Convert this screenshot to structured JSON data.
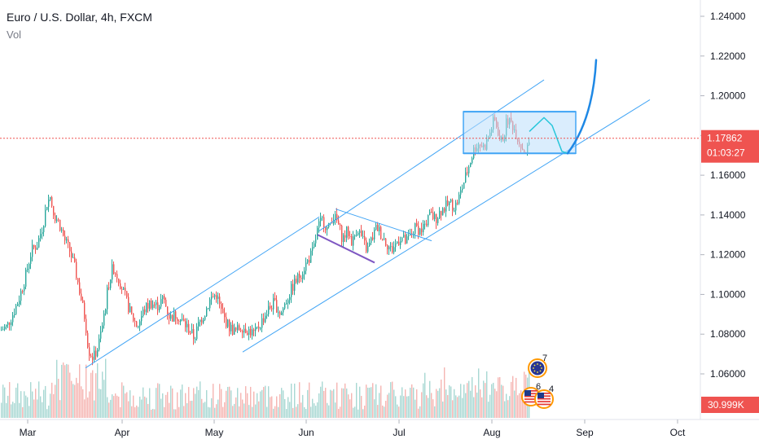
{
  "header": {
    "title": "Euro / U.S. Dollar, 4h, FXCM",
    "volume_label": "Vol"
  },
  "colors": {
    "up": "#26a69a",
    "down": "#ef5350",
    "vol_up": "#a8d8d3",
    "vol_down": "#f5b5b2",
    "channel": "#42a5f5",
    "wedge_lower": "#7e57c2",
    "box_fill": "#bbdefb",
    "projection_cyan": "#26c6da",
    "projection_blue": "#1e88e5",
    "last_price": "#ef5350",
    "axis": "#787b86"
  },
  "chart_data": {
    "type": "candlestick",
    "symbol": "Euro / U.S. Dollar",
    "timeframe": "4h",
    "source": "FXCM",
    "x_ticks": [
      "Mar",
      "Apr",
      "May",
      "Jun",
      "Jul",
      "Aug",
      "Sep",
      "Oct"
    ],
    "y_ticks": [
      "1.24000",
      "1.22000",
      "1.20000",
      "1.18000",
      "1.16000",
      "1.14000",
      "1.12000",
      "1.10000",
      "1.08000",
      "1.06000"
    ],
    "ylim": [
      1.045,
      1.255
    ],
    "last_price": "1.17862",
    "countdown": "01:03:27",
    "volume_last": "30.999K",
    "price_path": [
      [
        0,
        1.082
      ],
      [
        8,
        1.084
      ],
      [
        15,
        1.09
      ],
      [
        22,
        1.097
      ],
      [
        30,
        1.108
      ],
      [
        38,
        1.122
      ],
      [
        45,
        1.125
      ],
      [
        52,
        1.135
      ],
      [
        57,
        1.146
      ],
      [
        61,
        1.149
      ],
      [
        66,
        1.14
      ],
      [
        72,
        1.136
      ],
      [
        78,
        1.128
      ],
      [
        85,
        1.122
      ],
      [
        92,
        1.112
      ],
      [
        98,
        1.1
      ],
      [
        104,
        1.087
      ],
      [
        108,
        1.072
      ],
      [
        114,
        1.068
      ],
      [
        120,
        1.074
      ],
      [
        126,
        1.086
      ],
      [
        132,
        1.104
      ],
      [
        138,
        1.114
      ],
      [
        145,
        1.108
      ],
      [
        152,
        1.1
      ],
      [
        160,
        1.09
      ],
      [
        168,
        1.084
      ],
      [
        176,
        1.092
      ],
      [
        184,
        1.096
      ],
      [
        192,
        1.094
      ],
      [
        200,
        1.098
      ],
      [
        208,
        1.088
      ],
      [
        216,
        1.09
      ],
      [
        224,
        1.086
      ],
      [
        232,
        1.082
      ],
      [
        238,
        1.078
      ],
      [
        244,
        1.086
      ],
      [
        250,
        1.09
      ],
      [
        258,
        1.098
      ],
      [
        265,
        1.1
      ],
      [
        272,
        1.09
      ],
      [
        280,
        1.084
      ],
      [
        288,
        1.081
      ],
      [
        296,
        1.084
      ],
      [
        304,
        1.082
      ],
      [
        312,
        1.08
      ],
      [
        320,
        1.086
      ],
      [
        328,
        1.092
      ],
      [
        336,
        1.096
      ],
      [
        344,
        1.09
      ],
      [
        352,
        1.098
      ],
      [
        360,
        1.105
      ],
      [
        368,
        1.11
      ],
      [
        376,
        1.116
      ],
      [
        384,
        1.122
      ],
      [
        390,
        1.134
      ],
      [
        396,
        1.138
      ],
      [
        402,
        1.132
      ],
      [
        408,
        1.14
      ],
      [
        414,
        1.136
      ],
      [
        420,
        1.128
      ],
      [
        426,
        1.132
      ],
      [
        432,
        1.126
      ],
      [
        438,
        1.134
      ],
      [
        444,
        1.128
      ],
      [
        450,
        1.122
      ],
      [
        456,
        1.128
      ],
      [
        462,
        1.134
      ],
      [
        468,
        1.13
      ],
      [
        474,
        1.126
      ],
      [
        480,
        1.122
      ],
      [
        486,
        1.126
      ],
      [
        492,
        1.129
      ],
      [
        498,
        1.126
      ],
      [
        504,
        1.13
      ],
      [
        510,
        1.134
      ],
      [
        516,
        1.132
      ],
      [
        522,
        1.136
      ],
      [
        528,
        1.14
      ],
      [
        534,
        1.138
      ],
      [
        540,
        1.142
      ],
      [
        546,
        1.144
      ],
      [
        552,
        1.146
      ],
      [
        558,
        1.144
      ],
      [
        564,
        1.15
      ],
      [
        570,
        1.158
      ],
      [
        576,
        1.166
      ],
      [
        582,
        1.174
      ],
      [
        588,
        1.176
      ],
      [
        594,
        1.174
      ],
      [
        600,
        1.18
      ],
      [
        606,
        1.188
      ],
      [
        610,
        1.184
      ],
      [
        614,
        1.176
      ],
      [
        618,
        1.18
      ],
      [
        622,
        1.188
      ],
      [
        628,
        1.186
      ],
      [
        634,
        1.18
      ],
      [
        640,
        1.174
      ],
      [
        646,
        1.172
      ],
      [
        650,
        1.178
      ]
    ],
    "drawings": {
      "channel_upper": [
        [
          392,
          1.132
        ],
        [
          668,
          1.208
        ]
      ],
      "channel_lower": [
        [
          298,
          1.071
        ],
        [
          798,
          1.198
        ]
      ],
      "channel_start_lower": [
        [
          105,
          1.063
        ],
        [
          392,
          1.139
        ]
      ],
      "wedge_upper": [
        [
          412,
          1.143
        ],
        [
          530,
          1.127
        ]
      ],
      "wedge_lower": [
        [
          390,
          1.13
        ],
        [
          460,
          1.116
        ]
      ],
      "box": {
        "x0": 569,
        "x1": 707,
        "y_top": 1.192,
        "y_bottom": 1.171
      },
      "projection_wave": [
        [
          650,
          1.182
        ],
        [
          668,
          1.189
        ],
        [
          678,
          1.185
        ],
        [
          690,
          1.172
        ],
        [
          697,
          1.171
        ]
      ],
      "projection_spike": [
        [
          697,
          1.171
        ],
        [
          715,
          1.188
        ],
        [
          728,
          1.21
        ],
        [
          732,
          1.218
        ]
      ]
    },
    "events": [
      {
        "label": "7",
        "flag": "eu-flag-icon"
      },
      {
        "label": "6",
        "flag": "us-flag-icon"
      },
      {
        "label": "4",
        "flag": "us-flag-icon"
      }
    ]
  }
}
